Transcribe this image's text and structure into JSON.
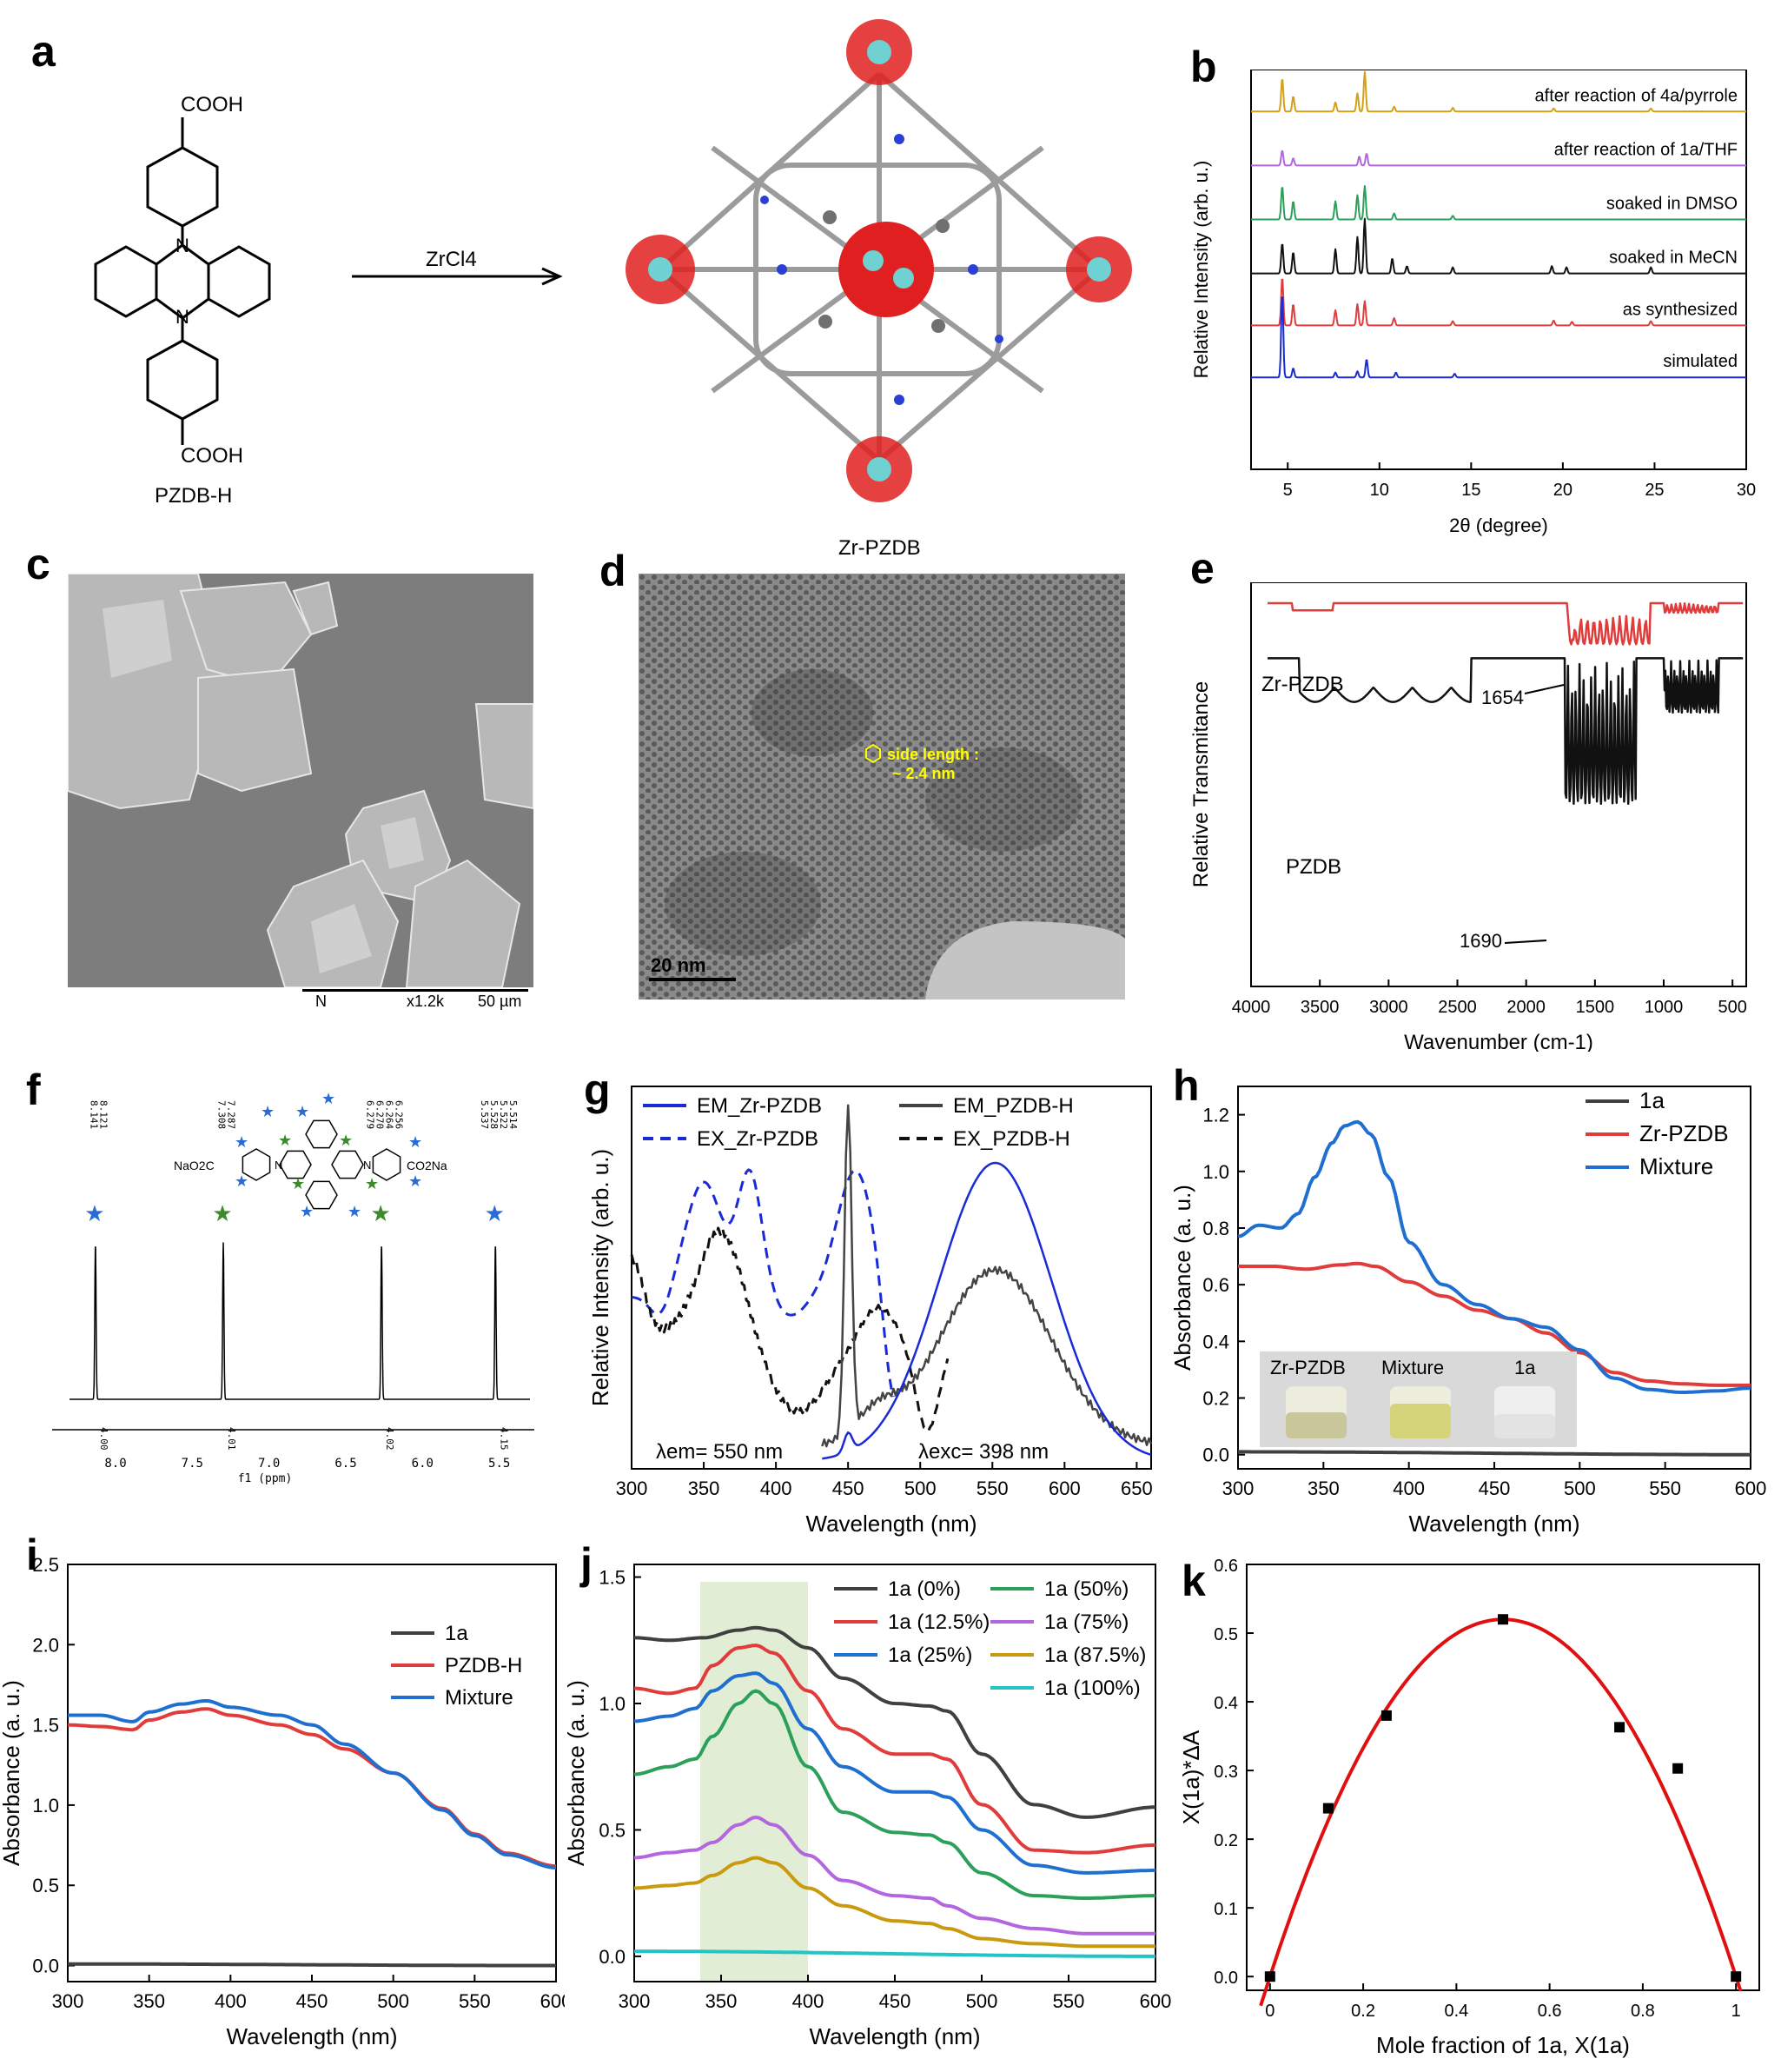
{
  "panels": {
    "a": {
      "letter": "a",
      "ligand_label": "PZDB-H",
      "reagent": "ZrCl4",
      "mof_label": "Zr-PZDB",
      "cooh_top": "COOH",
      "cooh_bottom": "COOH",
      "n_label": "N"
    },
    "b": {
      "letter": "b"
    },
    "c": {
      "letter": "c",
      "scalebar_text": [
        "N",
        "x1.2k",
        "50 µm"
      ]
    },
    "d": {
      "letter": "d",
      "annotation_1": "side length :",
      "annotation_2": "~ 2.4 nm",
      "scalebar": "20 nm"
    },
    "e": {
      "letter": "e"
    },
    "f": {
      "letter": "f",
      "peak_labels": [
        [
          "8.141",
          "8.121"
        ],
        [
          "7.308",
          "7.287"
        ],
        [
          "6.279",
          "6.270",
          "6.264",
          "6.256"
        ],
        [
          "5.537",
          "5.528",
          "5.522",
          "5.514"
        ]
      ],
      "integrals": [
        "4.00",
        "4.01",
        "4.02",
        "4.15"
      ],
      "axis_ticks": [
        "8.0",
        "7.5",
        "7.0",
        "6.5",
        "6.0",
        "5.5"
      ],
      "axis_label": "f1 (ppm)",
      "mol_left": "NaO2C",
      "mol_right": "CO2Na",
      "mol_n": "N"
    },
    "g": {
      "letter": "g",
      "ann_em": "λem= 550 nm",
      "ann_exc": "λexc= 398 nm"
    },
    "h": {
      "letter": "h",
      "photo_labels": [
        "Zr-PZDB",
        "Mixture",
        "1a"
      ]
    },
    "i": {
      "letter": "i"
    },
    "j": {
      "letter": "j"
    },
    "k": {
      "letter": "k"
    }
  },
  "chart_data": [
    {
      "id": "b",
      "type": "line",
      "xlabel": "2θ (degree)",
      "ylabel": "Relative Intensity (arb. u.)",
      "xlim": [
        3,
        30
      ],
      "xticks": [
        5,
        10,
        15,
        20,
        25,
        30
      ],
      "series": [
        {
          "name": "after reaction of 4a/pyrrole",
          "color": "#d4a017",
          "peaks": [
            [
              4.7,
              0.55
            ],
            [
              5.3,
              0.25
            ],
            [
              7.6,
              0.15
            ],
            [
              8.8,
              0.3
            ],
            [
              9.2,
              0.65
            ],
            [
              10.8,
              0.08
            ],
            [
              14.0,
              0.06
            ],
            [
              19.5,
              0.05
            ],
            [
              24.8,
              0.05
            ]
          ]
        },
        {
          "name": "after reaction of 1a/THF",
          "color": "#b266e0",
          "peaks": [
            [
              4.7,
              0.25
            ],
            [
              5.3,
              0.12
            ],
            [
              8.9,
              0.15
            ],
            [
              9.3,
              0.2
            ]
          ]
        },
        {
          "name": "soaked in DMSO",
          "color": "#2ca05a",
          "peaks": [
            [
              4.7,
              0.55
            ],
            [
              5.3,
              0.3
            ],
            [
              7.6,
              0.3
            ],
            [
              8.8,
              0.4
            ],
            [
              9.2,
              0.55
            ],
            [
              10.8,
              0.1
            ],
            [
              14.0,
              0.06
            ]
          ]
        },
        {
          "name": "soaked in MeCN",
          "color": "#111111",
          "peaks": [
            [
              4.7,
              0.5
            ],
            [
              5.3,
              0.35
            ],
            [
              7.6,
              0.4
            ],
            [
              8.8,
              0.6
            ],
            [
              9.2,
              0.9
            ],
            [
              10.7,
              0.25
            ],
            [
              11.5,
              0.12
            ],
            [
              14.0,
              0.1
            ],
            [
              19.4,
              0.12
            ],
            [
              20.2,
              0.1
            ],
            [
              24.8,
              0.1
            ]
          ]
        },
        {
          "name": "as synthesized",
          "color": "#e03c3c",
          "peaks": [
            [
              4.7,
              0.8
            ],
            [
              5.3,
              0.35
            ],
            [
              7.6,
              0.25
            ],
            [
              8.8,
              0.35
            ],
            [
              9.2,
              0.4
            ],
            [
              10.8,
              0.12
            ],
            [
              14.0,
              0.07
            ],
            [
              19.5,
              0.08
            ],
            [
              20.5,
              0.06
            ],
            [
              24.8,
              0.07
            ]
          ]
        },
        {
          "name": "simulated",
          "color": "#1a2bd6",
          "peaks": [
            [
              4.7,
              1.4
            ],
            [
              5.3,
              0.15
            ],
            [
              7.6,
              0.08
            ],
            [
              8.8,
              0.1
            ],
            [
              9.3,
              0.3
            ],
            [
              10.9,
              0.08
            ],
            [
              14.1,
              0.06
            ]
          ]
        }
      ]
    },
    {
      "id": "e",
      "type": "line",
      "xlabel": "Wavenumber (cm-1)",
      "ylabel": "Relative Transmitance",
      "xlim": [
        4000,
        400
      ],
      "xticks": [
        4000,
        3500,
        3000,
        2500,
        2000,
        1500,
        1000,
        500
      ],
      "series": [
        {
          "name": "Zr-PZDB",
          "color": "#e03c3c",
          "annotation": "1654"
        },
        {
          "name": "PZDB",
          "color": "#111111",
          "annotation": "1690"
        }
      ]
    },
    {
      "id": "f",
      "type": "line",
      "xlabel": "f1 (ppm)",
      "xlim": [
        8.3,
        5.3
      ],
      "peaks": [
        8.131,
        7.298,
        6.267,
        5.525
      ]
    },
    {
      "id": "g",
      "type": "line",
      "xlabel": "Wavelength (nm)",
      "ylabel": "Relative Intensity (arb. u.)",
      "xlim": [
        300,
        660
      ],
      "xticks": [
        300,
        350,
        400,
        450,
        500,
        550,
        600,
        650
      ],
      "series": [
        {
          "name": "EM_Zr-PZDB",
          "color": "#1a2bd6",
          "style": "solid"
        },
        {
          "name": "EX_Zr-PZDB",
          "color": "#1a2bd6",
          "style": "dashed"
        },
        {
          "name": "EM_PZDB-H",
          "color": "#333333",
          "style": "solid"
        },
        {
          "name": "EX_PZDB-H",
          "color": "#111111",
          "style": "dashed"
        }
      ]
    },
    {
      "id": "h",
      "type": "line",
      "xlabel": "Wavelength (nm)",
      "ylabel": "Absorbance (a. u.)",
      "xlim": [
        300,
        600
      ],
      "ylim": [
        -0.05,
        1.3
      ],
      "xticks": [
        300,
        350,
        400,
        450,
        500,
        550,
        600
      ],
      "yticks": [
        0.0,
        0.2,
        0.4,
        0.6,
        0.8,
        1.0,
        1.2
      ],
      "series": [
        {
          "name": "1a",
          "color": "#404040",
          "x": [
            300,
            600
          ],
          "y": [
            0.01,
            0.0
          ]
        },
        {
          "name": "Zr-PZDB",
          "color": "#e03c3c",
          "x": [
            300,
            320,
            340,
            360,
            370,
            380,
            400,
            420,
            440,
            460,
            480,
            500,
            520,
            540,
            560,
            580,
            600
          ],
          "y": [
            0.665,
            0.665,
            0.655,
            0.67,
            0.675,
            0.665,
            0.61,
            0.56,
            0.51,
            0.48,
            0.43,
            0.36,
            0.29,
            0.26,
            0.25,
            0.245,
            0.245
          ]
        },
        {
          "name": "Mixture",
          "color": "#1f6fd0",
          "x": [
            300,
            312,
            325,
            335,
            345,
            355,
            362,
            370,
            378,
            388,
            400,
            420,
            440,
            460,
            480,
            500,
            520,
            540,
            560,
            580,
            600
          ],
          "y": [
            0.77,
            0.81,
            0.8,
            0.85,
            0.98,
            1.1,
            1.16,
            1.175,
            1.13,
            0.98,
            0.75,
            0.6,
            0.53,
            0.48,
            0.45,
            0.37,
            0.27,
            0.23,
            0.22,
            0.225,
            0.235
          ]
        }
      ]
    },
    {
      "id": "i",
      "type": "line",
      "xlabel": "Wavelength (nm)",
      "ylabel": "Absorbance (a. u.)",
      "xlim": [
        300,
        600
      ],
      "ylim": [
        -0.1,
        2.5
      ],
      "xticks": [
        300,
        350,
        400,
        450,
        500,
        550,
        600
      ],
      "yticks": [
        0.0,
        0.5,
        1.0,
        1.5,
        2.0,
        2.5
      ],
      "series": [
        {
          "name": "1a",
          "color": "#404040",
          "x": [
            300,
            600
          ],
          "y": [
            0.01,
            0.0
          ]
        },
        {
          "name": "PZDB-H",
          "color": "#e03c3c",
          "x": [
            300,
            320,
            340,
            350,
            370,
            385,
            400,
            430,
            450,
            470,
            500,
            530,
            550,
            570,
            600
          ],
          "y": [
            1.5,
            1.49,
            1.47,
            1.53,
            1.58,
            1.6,
            1.56,
            1.5,
            1.44,
            1.35,
            1.2,
            0.98,
            0.82,
            0.7,
            0.62
          ]
        },
        {
          "name": "Mixture",
          "color": "#1f6fd0",
          "x": [
            300,
            320,
            340,
            350,
            370,
            385,
            400,
            430,
            450,
            470,
            500,
            530,
            550,
            570,
            600
          ],
          "y": [
            1.56,
            1.56,
            1.52,
            1.58,
            1.63,
            1.65,
            1.61,
            1.56,
            1.5,
            1.38,
            1.2,
            0.97,
            0.81,
            0.69,
            0.61
          ]
        }
      ]
    },
    {
      "id": "j",
      "type": "line",
      "xlabel": "Wavelength (nm)",
      "ylabel": "Absorbance (a. u.)",
      "xlim": [
        300,
        600
      ],
      "ylim": [
        -0.1,
        1.55
      ],
      "xticks": [
        300,
        350,
        400,
        450,
        500,
        550,
        600
      ],
      "yticks": [
        0.0,
        0.5,
        1.0,
        1.5
      ],
      "highlight": [
        338,
        400
      ],
      "series": [
        {
          "name": "1a (0%)",
          "color": "#404040",
          "x": [
            300,
            320,
            340,
            360,
            370,
            380,
            400,
            420,
            450,
            470,
            480,
            500,
            530,
            560,
            600
          ],
          "y": [
            1.26,
            1.25,
            1.26,
            1.29,
            1.3,
            1.29,
            1.22,
            1.1,
            1.0,
            0.99,
            0.97,
            0.8,
            0.6,
            0.55,
            0.59
          ]
        },
        {
          "name": "1a (12.5%)",
          "color": "#e03c3c",
          "x": [
            300,
            320,
            335,
            345,
            360,
            370,
            380,
            400,
            420,
            450,
            470,
            480,
            500,
            530,
            560,
            600
          ],
          "y": [
            1.06,
            1.04,
            1.06,
            1.15,
            1.22,
            1.23,
            1.2,
            1.05,
            0.9,
            0.8,
            0.8,
            0.78,
            0.6,
            0.42,
            0.41,
            0.44
          ]
        },
        {
          "name": "1a (25%)",
          "color": "#1f6fd0",
          "x": [
            300,
            320,
            335,
            345,
            360,
            370,
            380,
            400,
            420,
            450,
            470,
            480,
            500,
            530,
            560,
            600
          ],
          "y": [
            0.93,
            0.95,
            0.98,
            1.05,
            1.11,
            1.12,
            1.08,
            0.9,
            0.75,
            0.65,
            0.65,
            0.63,
            0.5,
            0.36,
            0.33,
            0.34
          ]
        },
        {
          "name": "1a (50%)",
          "color": "#2ca05a",
          "x": [
            300,
            320,
            335,
            345,
            360,
            370,
            380,
            400,
            420,
            450,
            470,
            480,
            500,
            530,
            560,
            600
          ],
          "y": [
            0.72,
            0.75,
            0.78,
            0.87,
            1.0,
            1.05,
            1.0,
            0.75,
            0.57,
            0.49,
            0.48,
            0.45,
            0.33,
            0.24,
            0.23,
            0.24
          ]
        },
        {
          "name": "1a (75%)",
          "color": "#b266e0",
          "x": [
            300,
            320,
            335,
            345,
            360,
            370,
            380,
            400,
            420,
            450,
            470,
            480,
            500,
            530,
            560,
            600
          ],
          "y": [
            0.39,
            0.41,
            0.42,
            0.45,
            0.52,
            0.55,
            0.52,
            0.4,
            0.3,
            0.24,
            0.23,
            0.2,
            0.15,
            0.11,
            0.09,
            0.09
          ]
        },
        {
          "name": "1a (87.5%)",
          "color": "#c99a0e",
          "x": [
            300,
            320,
            335,
            345,
            360,
            370,
            380,
            400,
            420,
            450,
            470,
            480,
            500,
            530,
            560,
            600
          ],
          "y": [
            0.27,
            0.28,
            0.29,
            0.32,
            0.37,
            0.39,
            0.37,
            0.27,
            0.2,
            0.14,
            0.13,
            0.11,
            0.07,
            0.05,
            0.04,
            0.04
          ]
        },
        {
          "name": "1a (100%)",
          "color": "#22c4c4",
          "x": [
            300,
            600
          ],
          "y": [
            0.02,
            0.0
          ]
        }
      ]
    },
    {
      "id": "k",
      "type": "scatter",
      "xlabel": "Mole fraction of 1a, X(1a)",
      "ylabel": "X(1a)*ΔA",
      "xlim": [
        -0.05,
        1.05
      ],
      "ylim": [
        -0.02,
        0.6
      ],
      "xticks": [
        0.0,
        0.2,
        0.4,
        0.6,
        0.8,
        1.0
      ],
      "yticks": [
        0.0,
        0.1,
        0.2,
        0.3,
        0.4,
        0.5,
        0.6
      ],
      "points": {
        "x": [
          0,
          0.125,
          0.25,
          0.5,
          0.75,
          0.875,
          1.0
        ],
        "y": [
          0.0,
          0.245,
          0.38,
          0.52,
          0.363,
          0.303,
          0.0
        ]
      },
      "fit": {
        "color": "#e01010",
        "vertex_x": 0.5,
        "vertex_y": 0.52,
        "from": 0.0,
        "to": 1.0
      }
    }
  ]
}
